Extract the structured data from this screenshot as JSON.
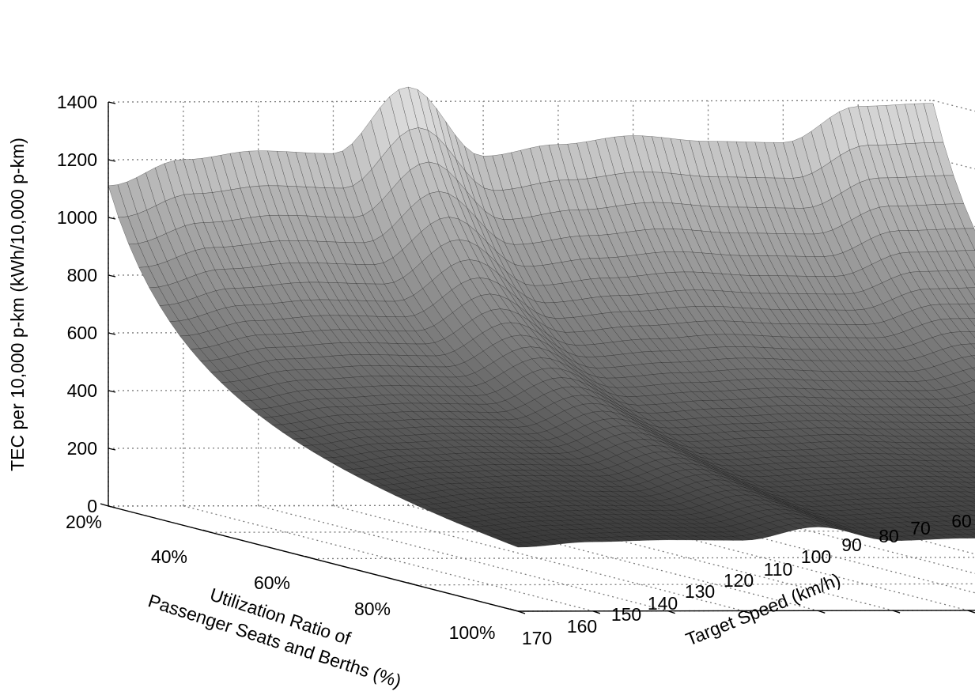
{
  "chart_data": {
    "type": "surface",
    "title": "",
    "zlabel": "TEC per 10,000 p-km (kWh/10,000 p-km)",
    "xlabel_lines": [
      "Utilization Ratio of",
      "Passenger Seats and Berths (%)"
    ],
    "ylabel": "Target Speed (km/h)",
    "zlim": [
      0,
      1400
    ],
    "z_ticks": [
      "0",
      "200",
      "400",
      "600",
      "800",
      "1000",
      "1200",
      "1400"
    ],
    "utilization_ticks": [
      "20%",
      "40%",
      "60%",
      "80%",
      "100%"
    ],
    "utilization_range": [
      20,
      100
    ],
    "speed_ticks": [
      "170",
      "160",
      "150",
      "140",
      "130",
      "120",
      "110",
      "100",
      "90",
      "80",
      "70",
      "60"
    ],
    "speed_range": [
      60,
      170
    ],
    "grid": true,
    "colormap": "gray",
    "series": [
      {
        "utilization_pct": [
          20,
          30,
          40,
          50,
          60,
          70,
          80,
          90,
          100
        ],
        "speed_kmh": [
          60,
          70,
          80,
          90,
          100,
          110,
          120,
          130,
          140,
          150,
          160,
          170
        ],
        "tec_at_20pct_by_speed": [
          1390,
          1380,
          1255,
          1260,
          1280,
          1250,
          1210,
          1450,
          1220,
          1230,
          1200,
          1110
        ]
      }
    ]
  }
}
